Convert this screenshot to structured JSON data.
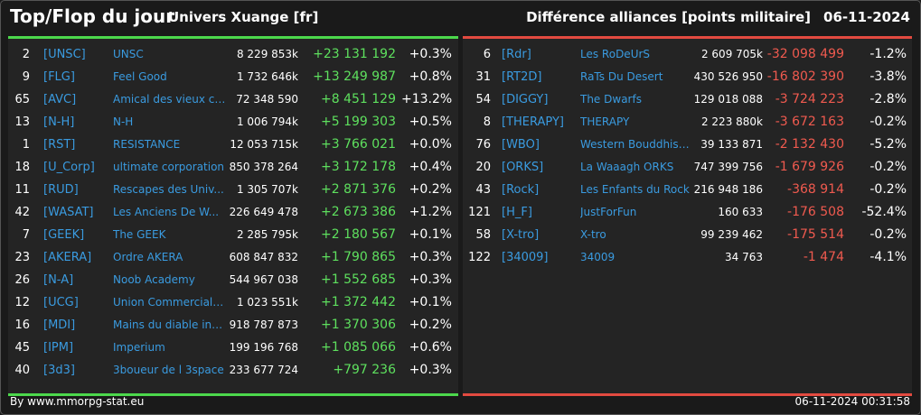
{
  "header": {
    "title": "Top/Flop du jour",
    "universe": "Univers Xuange [fr]",
    "subtitle": "Différence alliances [points militaire]",
    "date": "06-11-2024"
  },
  "colors": {
    "positive": "#5ee05e",
    "negative": "#f05a4f",
    "link": "#3a9be0",
    "top_bar": "#4cd84c",
    "flop_bar": "#e24a40"
  },
  "top": [
    {
      "rank": "2",
      "tag": "[UNSC]",
      "name": "UNSC",
      "points": "8 229 853k",
      "diff": "+23 131 192",
      "pct": "+0.3%"
    },
    {
      "rank": "9",
      "tag": "[FLG]",
      "name": "Feel Good",
      "points": "1 732 646k",
      "diff": "+13 249 987",
      "pct": "+0.8%"
    },
    {
      "rank": "65",
      "tag": "[AVC]",
      "name": "Amical des vieux co...",
      "points": "72 348 590",
      "diff": "+8 451 129",
      "pct": "+13.2%"
    },
    {
      "rank": "13",
      "tag": "[N-H]",
      "name": "N-H",
      "points": "1 006 794k",
      "diff": "+5 199 303",
      "pct": "+0.5%"
    },
    {
      "rank": "1",
      "tag": "[RST]",
      "name": "RESISTANCE",
      "points": "12 053 715k",
      "diff": "+3 766 021",
      "pct": "+0.0%"
    },
    {
      "rank": "18",
      "tag": "[U_Corp]",
      "name": "ultimate corporation",
      "points": "850 378 264",
      "diff": "+3 172 178",
      "pct": "+0.4%"
    },
    {
      "rank": "11",
      "tag": "[RUD]",
      "name": "Rescapes des Univ...",
      "points": "1 305 707k",
      "diff": "+2 871 376",
      "pct": "+0.2%"
    },
    {
      "rank": "42",
      "tag": "[WASAT]",
      "name": "Les Anciens De W...",
      "points": "226 649 478",
      "diff": "+2 673 386",
      "pct": "+1.2%"
    },
    {
      "rank": "7",
      "tag": "[GEEK]",
      "name": "The GEEK",
      "points": "2 285 795k",
      "diff": "+2 180 567",
      "pct": "+0.1%"
    },
    {
      "rank": "23",
      "tag": "[AKERA]",
      "name": "Ordre AKERA",
      "points": "608 847 832",
      "diff": "+1 790 865",
      "pct": "+0.3%"
    },
    {
      "rank": "26",
      "tag": "[N-A]",
      "name": "Noob Academy",
      "points": "544 967 038",
      "diff": "+1 552 685",
      "pct": "+0.3%"
    },
    {
      "rank": "12",
      "tag": "[UCG]",
      "name": "Union Commerciale...",
      "points": "1 023 551k",
      "diff": "+1 372 442",
      "pct": "+0.1%"
    },
    {
      "rank": "16",
      "tag": "[MDI]",
      "name": "Mains du diable inco...",
      "points": "918 787 873",
      "diff": "+1 370 306",
      "pct": "+0.2%"
    },
    {
      "rank": "45",
      "tag": "[IPM]",
      "name": "Imperium",
      "points": "199 196 768",
      "diff": "+1 085 066",
      "pct": "+0.6%"
    },
    {
      "rank": "40",
      "tag": "[3d3]",
      "name": "3boueur de l 3space",
      "points": "233 677 724",
      "diff": "+797 236",
      "pct": "+0.3%"
    }
  ],
  "flop": [
    {
      "rank": "6",
      "tag": "[Rdr]",
      "name": "Les RoDeUrS",
      "points": "2 609 705k",
      "diff": "-32 098 499",
      "pct": "-1.2%"
    },
    {
      "rank": "31",
      "tag": "[RT2D]",
      "name": "RaTs Du Desert",
      "points": "430 526 950",
      "diff": "-16 802 390",
      "pct": "-3.8%"
    },
    {
      "rank": "54",
      "tag": "[DIGGY]",
      "name": "The Dwarfs",
      "points": "129 018 088",
      "diff": "-3 724 223",
      "pct": "-2.8%"
    },
    {
      "rank": "8",
      "tag": "[THERAPY]",
      "name": "THERAPY",
      "points": "2 223 880k",
      "diff": "-3 672 163",
      "pct": "-0.2%"
    },
    {
      "rank": "76",
      "tag": "[WBO]",
      "name": "Western Bouddhist ...",
      "points": "39 133 871",
      "diff": "-2 132 430",
      "pct": "-5.2%"
    },
    {
      "rank": "20",
      "tag": "[ORKS]",
      "name": "La Waaagh ORKS",
      "points": "747 399 756",
      "diff": "-1 679 926",
      "pct": "-0.2%"
    },
    {
      "rank": "43",
      "tag": "[Rock]",
      "name": "Les Enfants du Rock",
      "points": "216 948 186",
      "diff": "-368 914",
      "pct": "-0.2%"
    },
    {
      "rank": "121",
      "tag": "[H_F]",
      "name": "JustForFun",
      "points": "160 633",
      "diff": "-176 508",
      "pct": "-52.4%"
    },
    {
      "rank": "58",
      "tag": "[X-tro]",
      "name": "X-tro",
      "points": "99 239 462",
      "diff": "-175 514",
      "pct": "-0.2%"
    },
    {
      "rank": "122",
      "tag": "[34009]",
      "name": "34009",
      "points": "34 763",
      "diff": "-1 474",
      "pct": "-4.1%"
    }
  ],
  "footer": {
    "credit": "By www.mmorpg-stat.eu",
    "timestamp": "06-11-2024 00:31:58"
  }
}
